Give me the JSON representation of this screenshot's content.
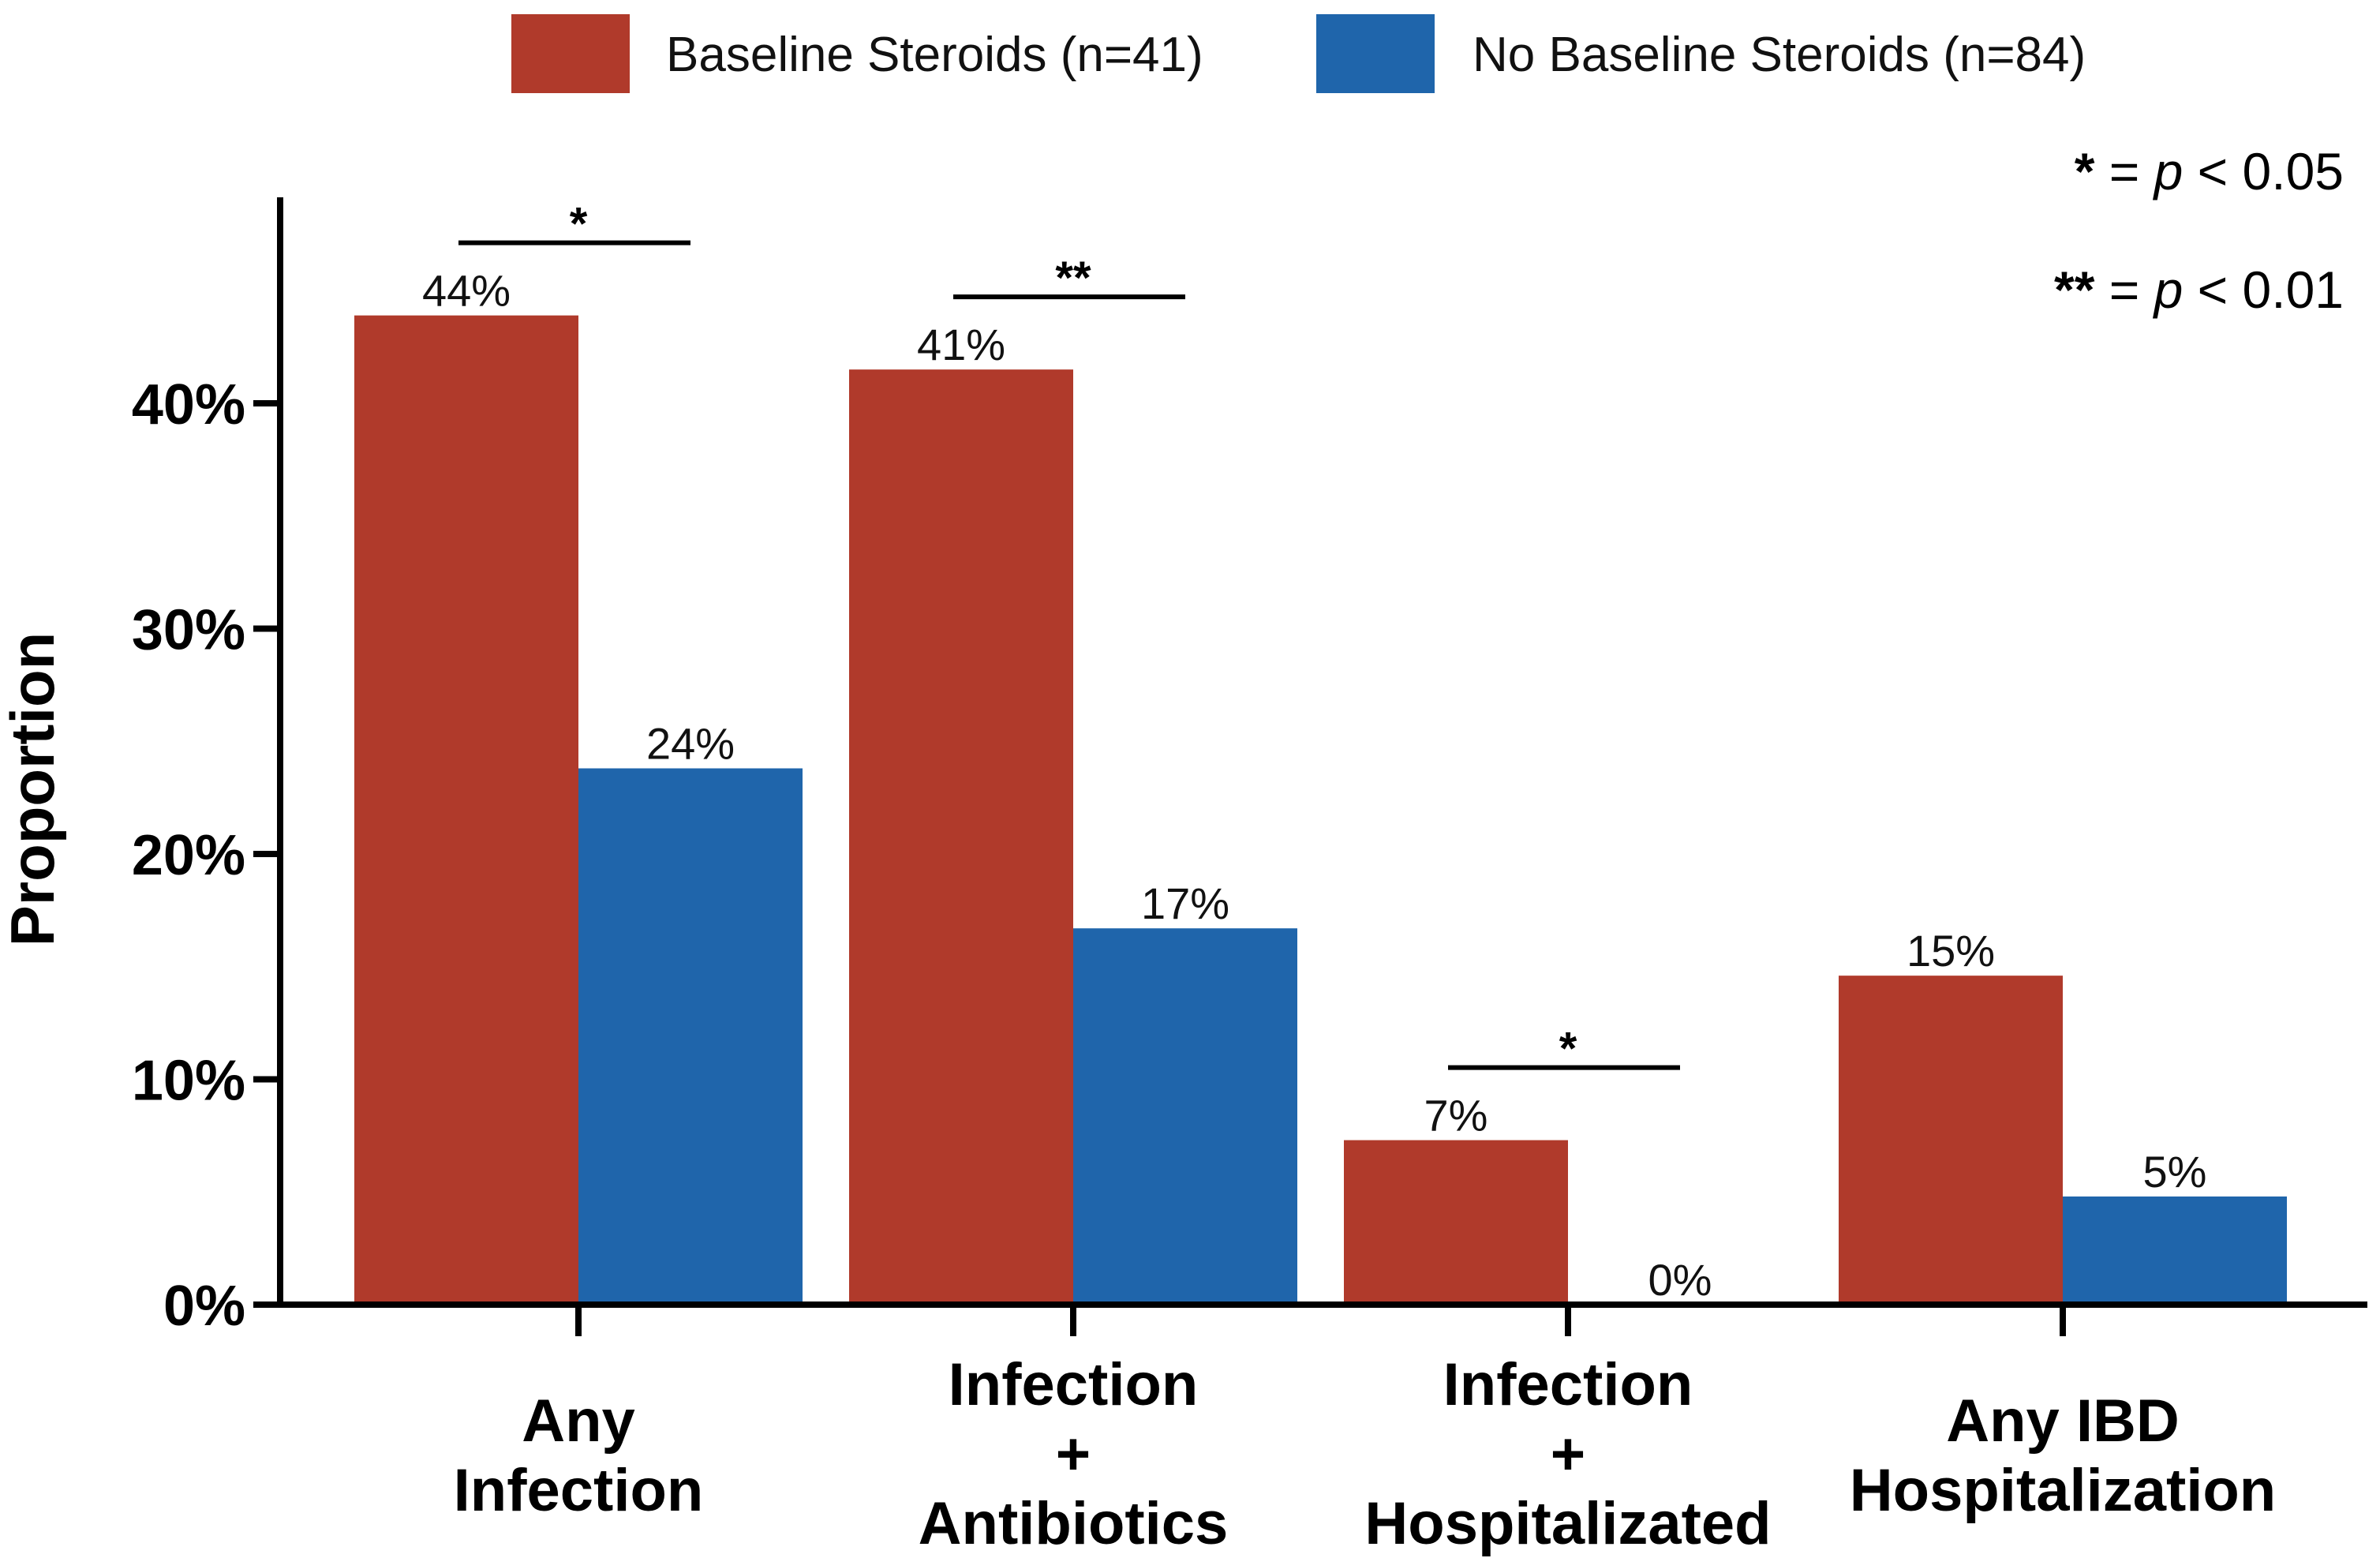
{
  "chart_data": {
    "type": "bar",
    "title": "",
    "ylabel": "Proportion",
    "xlabel": "",
    "ylim": [
      0,
      50
    ],
    "yticks": [
      0,
      10,
      20,
      30,
      40
    ],
    "ytick_labels": [
      "0%",
      "10%",
      "20%",
      "30%",
      "40%"
    ],
    "grid": false,
    "legend_position": "top",
    "categories": [
      [
        "Any",
        "Infection"
      ],
      [
        "Infection",
        "+",
        "Antibiotics"
      ],
      [
        "Infection",
        "+",
        "Hospitalizated"
      ],
      [
        "Any IBD",
        "Hospitalization"
      ]
    ],
    "series": [
      {
        "name": "Baseline Steroids (n=41)",
        "color": "#b03a2b",
        "values": [
          43.9,
          41.5,
          7.3,
          14.6
        ],
        "labels": [
          "44%",
          "41%",
          "7%",
          "15%"
        ]
      },
      {
        "name": "No Baseline Steroids (n=84)",
        "color": "#1f65ab",
        "values": [
          23.8,
          16.7,
          0,
          4.8
        ],
        "labels": [
          "24%",
          "17%",
          "0%",
          "5%"
        ]
      }
    ],
    "significance": [
      {
        "category": 0,
        "stars": "*"
      },
      {
        "category": 1,
        "stars": "**"
      },
      {
        "category": 2,
        "stars": "*"
      }
    ],
    "annotations": [
      {
        "stars": "*",
        "eq": " = ",
        "p": "p",
        "rest": " < 0.05"
      },
      {
        "stars": "**",
        "eq": " = ",
        "p": "p",
        "rest": " < 0.01"
      }
    ]
  }
}
